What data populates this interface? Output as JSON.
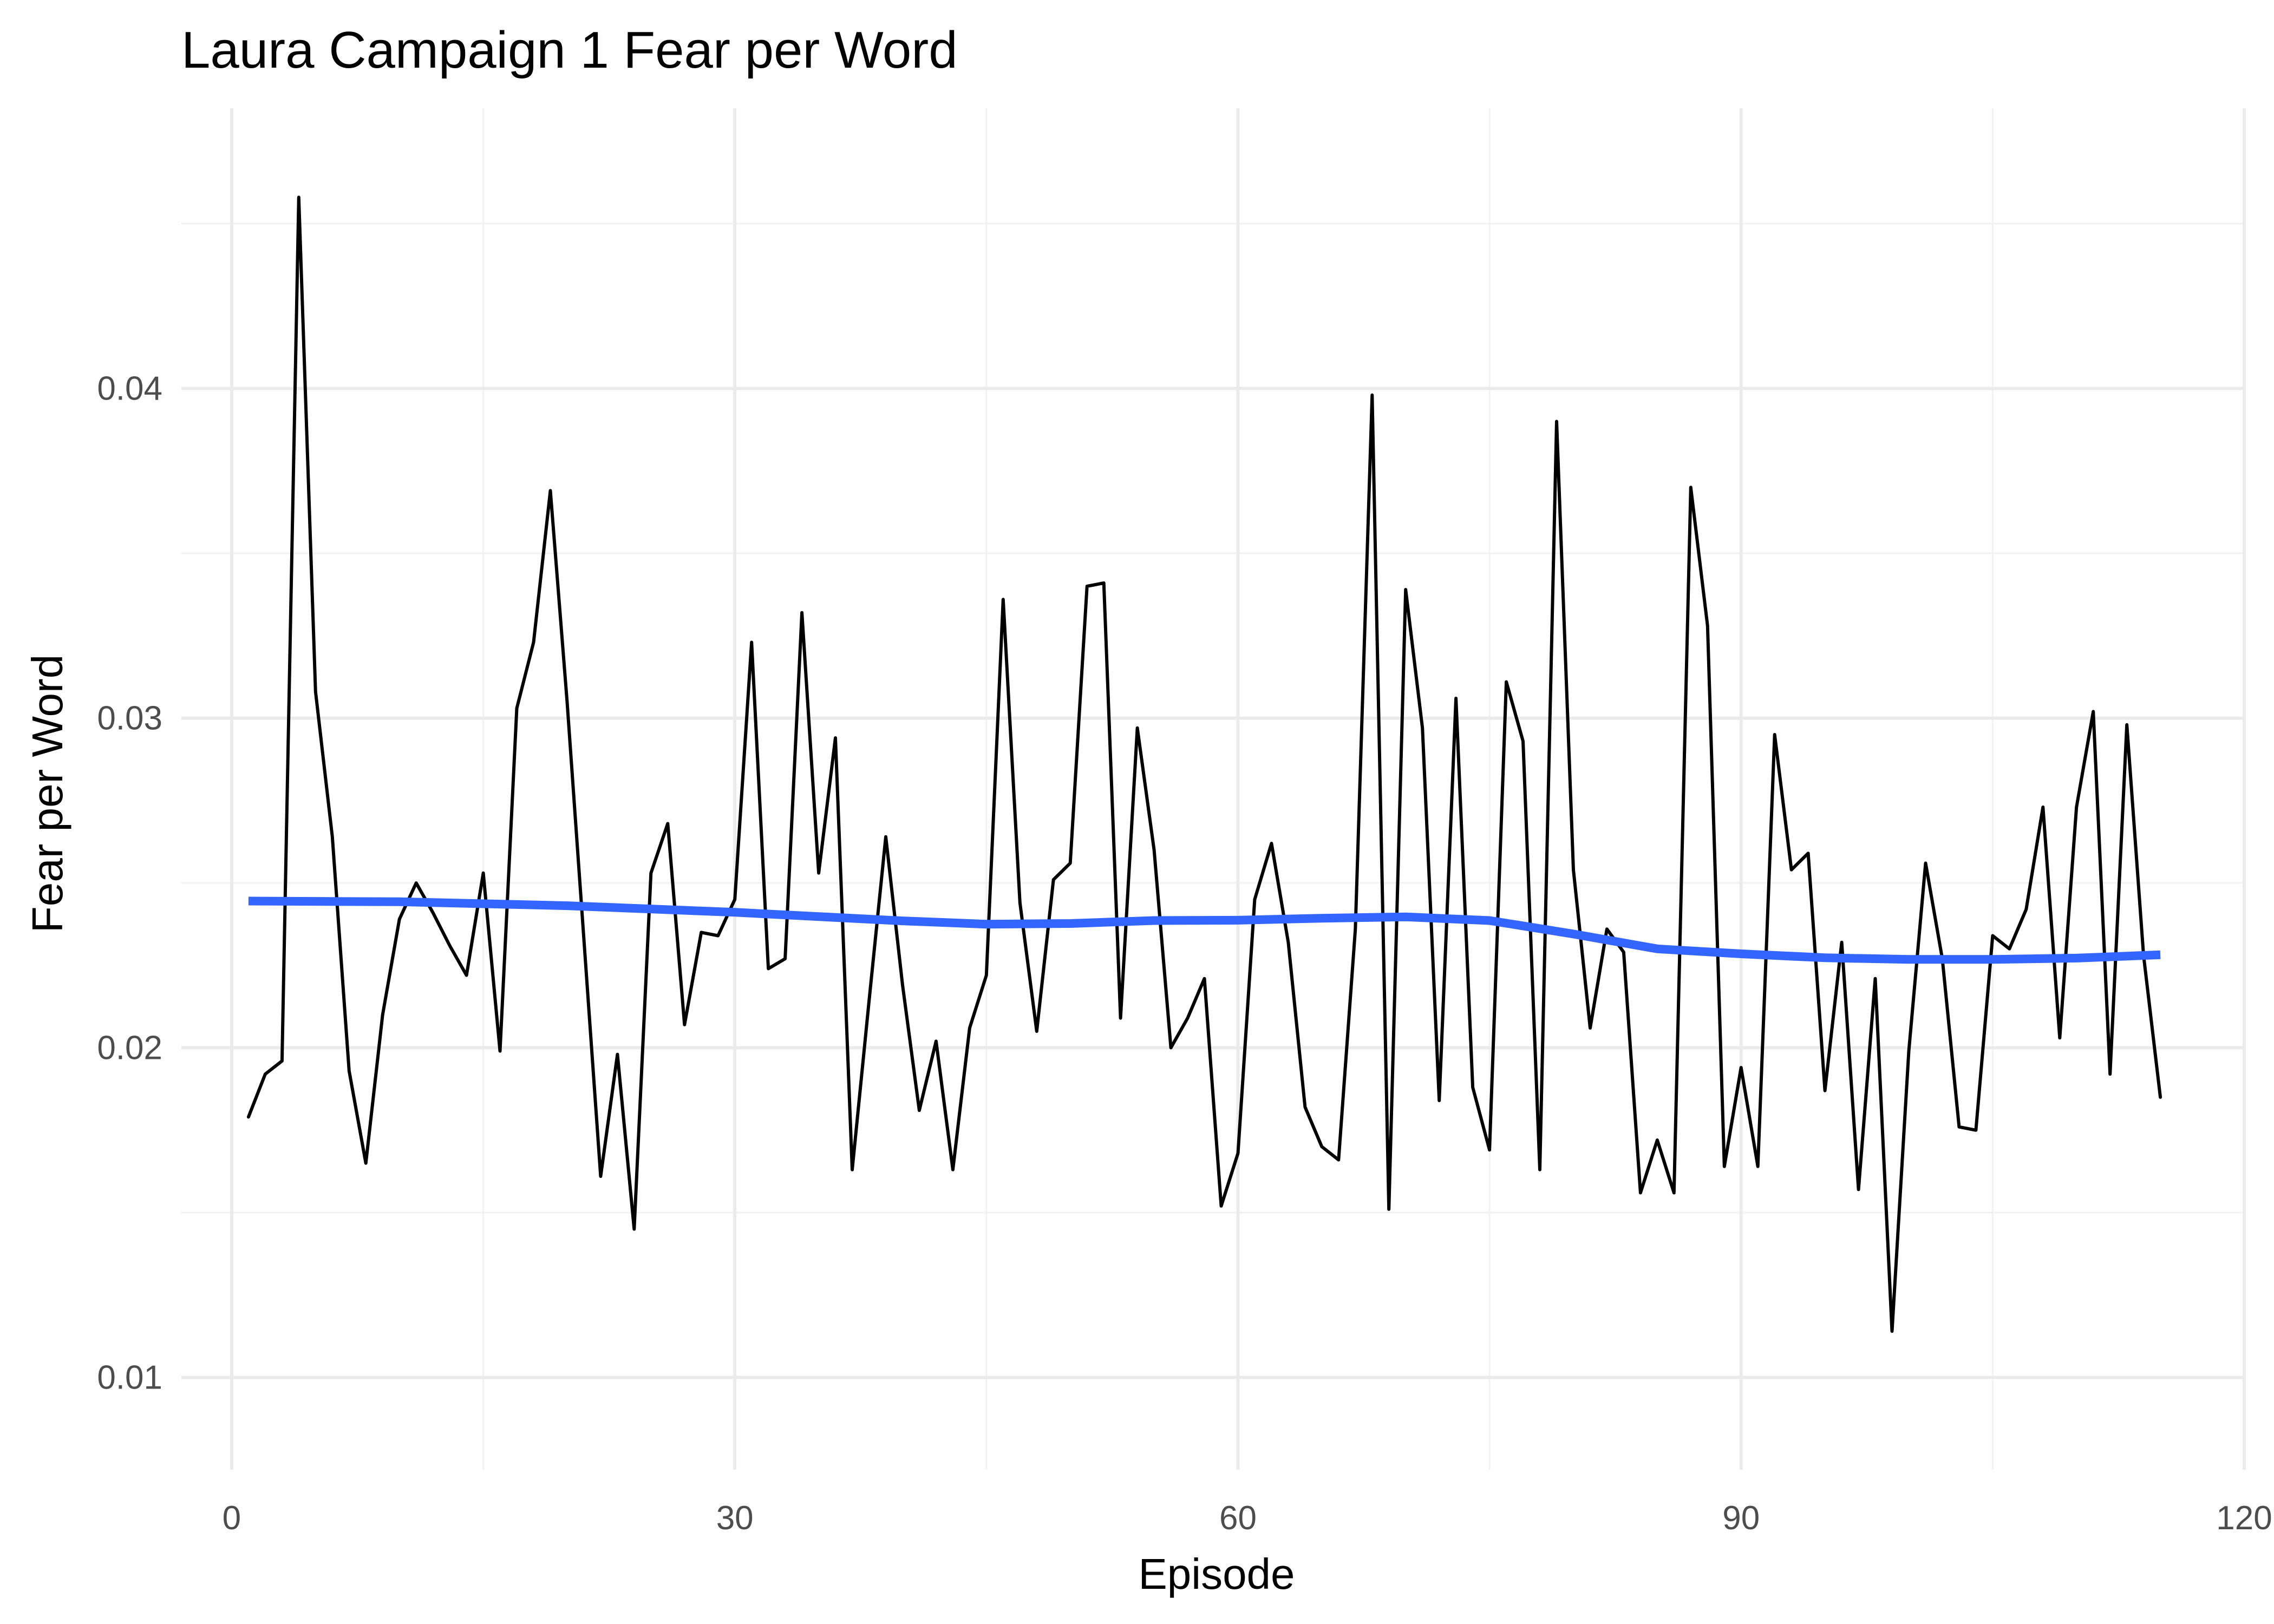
{
  "chart_data": {
    "type": "line",
    "title": "Laura Campaign 1 Fear per Word",
    "xlabel": "Episode",
    "ylabel": "Fear per Word",
    "xlim": [
      -3,
      120
    ],
    "ylim": [
      0.0072,
      0.0485
    ],
    "x_ticks": [
      0,
      30,
      60,
      90,
      120
    ],
    "x_tick_labels": [
      "0",
      "30",
      "60",
      "90",
      "120"
    ],
    "y_ticks": [
      0.01,
      0.02,
      0.03,
      0.04
    ],
    "y_tick_labels": [
      "0.01",
      "0.02",
      "0.03",
      "0.04"
    ],
    "grid": true,
    "series": [
      {
        "kind": "line",
        "color": "#000000",
        "x": [
          1,
          2,
          3,
          4,
          5,
          6,
          7,
          8,
          9,
          10,
          11,
          12,
          13,
          14,
          15,
          16,
          17,
          18,
          19,
          20,
          21,
          22,
          23,
          24,
          25,
          26,
          27,
          28,
          29,
          30,
          31,
          32,
          33,
          34,
          35,
          36,
          37,
          38,
          39,
          40,
          41,
          42,
          43,
          44,
          45,
          46,
          47,
          48,
          49,
          50,
          51,
          52,
          53,
          54,
          55,
          56,
          57,
          58,
          59,
          60,
          61,
          62,
          63,
          64,
          65,
          66,
          67,
          68,
          69,
          70,
          71,
          72,
          73,
          74,
          75,
          76,
          77,
          78,
          79,
          80,
          81,
          82,
          83,
          84,
          85,
          86,
          87,
          88,
          89,
          90,
          91,
          92,
          93,
          94,
          95,
          96,
          97,
          98,
          99,
          100,
          101,
          102,
          103,
          104,
          105,
          106,
          107,
          108,
          109,
          110,
          111,
          112,
          113,
          114,
          115
        ],
        "y": [
          0.0179,
          0.0192,
          0.0196,
          0.0458,
          0.0308,
          0.0264,
          0.0193,
          0.0165,
          0.021,
          0.0239,
          0.025,
          0.0241,
          0.0231,
          0.0222,
          0.0253,
          0.0199,
          0.0303,
          0.0323,
          0.0369,
          0.0305,
          0.0233,
          0.0161,
          0.0198,
          0.0145,
          0.0253,
          0.0268,
          0.0207,
          0.0235,
          0.0234,
          0.0245,
          0.0323,
          0.0224,
          0.0227,
          0.0332,
          0.0253,
          0.0294,
          0.0163,
          0.0214,
          0.0264,
          0.0219,
          0.0181,
          0.0202,
          0.0163,
          0.0206,
          0.0222,
          0.0336,
          0.0244,
          0.0205,
          0.0251,
          0.0256,
          0.034,
          0.0341,
          0.0209,
          0.0297,
          0.026,
          0.02,
          0.0209,
          0.0221,
          0.0152,
          0.0168,
          0.0245,
          0.0262,
          0.0232,
          0.0182,
          0.017,
          0.0166,
          0.0236,
          0.0398,
          0.0151,
          0.0339,
          0.0297,
          0.0184,
          0.0306,
          0.0188,
          0.0169,
          0.0311,
          0.0293,
          0.0163,
          0.039,
          0.0254,
          0.0206,
          0.0236,
          0.0229,
          0.0156,
          0.0172,
          0.0156,
          0.037,
          0.0328,
          0.0164,
          0.0194,
          0.0164,
          0.0295,
          0.0254,
          0.0259,
          0.0187,
          0.0232,
          0.0157,
          0.0221,
          0.0114,
          0.0199,
          0.0256,
          0.0227,
          0.0176,
          0.0175,
          0.0234,
          0.023,
          0.0242,
          0.0273,
          0.0203,
          0.0273,
          0.0302,
          0.0192,
          0.0298,
          0.0228,
          0.0185
        ]
      },
      {
        "kind": "smooth",
        "color": "#3366ff",
        "x": [
          1,
          10,
          20,
          30,
          40,
          45,
          50,
          55,
          60,
          65,
          70,
          75,
          80,
          85,
          90,
          95,
          100,
          105,
          110,
          115
        ],
        "y": [
          0.02445,
          0.02443,
          0.02431,
          0.02411,
          0.02385,
          0.02375,
          0.02377,
          0.02386,
          0.02387,
          0.02393,
          0.02397,
          0.02386,
          0.02345,
          0.023,
          0.02285,
          0.02273,
          0.02268,
          0.02268,
          0.02272,
          0.02282
        ]
      }
    ]
  }
}
